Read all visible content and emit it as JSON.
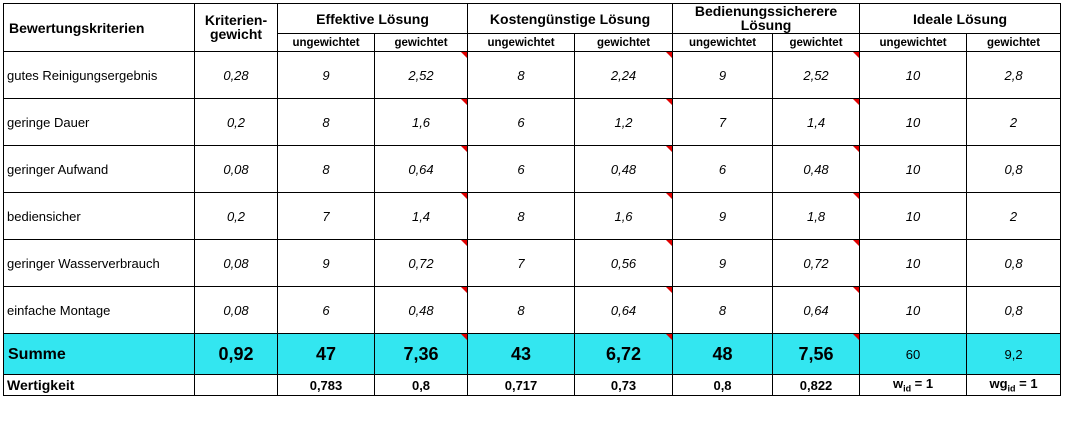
{
  "header": {
    "criteria": "Bewertungskriterien",
    "weight": "Kriterien-gewicht",
    "solutions": [
      "Effektive Lösung",
      "Kostengünstige Lösung",
      "Bedienungssicherere Lösung",
      "Ideale Lösung"
    ],
    "sub_unweighted": "ungewichtet",
    "sub_weighted": "gewichtet"
  },
  "rows": [
    {
      "label": "gutes Reinigungsergebnis",
      "weight": "0,28",
      "cells": [
        "9",
        "2,52",
        "8",
        "2,24",
        "9",
        "2,52",
        "10",
        "2,8"
      ]
    },
    {
      "label": "geringe Dauer",
      "weight": "0,2",
      "cells": [
        "8",
        "1,6",
        "6",
        "1,2",
        "7",
        "1,4",
        "10",
        "2"
      ]
    },
    {
      "label": "geringer Aufwand",
      "weight": "0,08",
      "cells": [
        "8",
        "0,64",
        "6",
        "0,48",
        "6",
        "0,48",
        "10",
        "0,8"
      ]
    },
    {
      "label": "bediensicher",
      "weight": "0,2",
      "cells": [
        "7",
        "1,4",
        "8",
        "1,6",
        "9",
        "1,8",
        "10",
        "2"
      ]
    },
    {
      "label": "geringer Wasserverbrauch",
      "weight": "0,08",
      "cells": [
        "9",
        "0,72",
        "7",
        "0,56",
        "9",
        "0,72",
        "10",
        "0,8"
      ]
    },
    {
      "label": "einfache Montage",
      "weight": "0,08",
      "cells": [
        "6",
        "0,48",
        "8",
        "0,64",
        "8",
        "0,64",
        "10",
        "0,8"
      ]
    }
  ],
  "sum": {
    "label": "Summe",
    "weight": "0,92",
    "cells": [
      "47",
      "7,36",
      "43",
      "6,72",
      "48",
      "7,56",
      "60",
      "9,2"
    ]
  },
  "wertigkeit": {
    "label": "Wertigkeit",
    "cells": [
      "0,783",
      "0,8",
      "0,717",
      "0,73",
      "0,8",
      "0,822"
    ],
    "ideal_unweighted": {
      "prefix": "w",
      "sub": "id",
      "suffix": " = 1"
    },
    "ideal_weighted": {
      "prefix": "wg",
      "sub": "id",
      "suffix": " = 1"
    }
  },
  "colors": {
    "sum_row": "#33e6f0",
    "comment_marker": "#e00000"
  }
}
